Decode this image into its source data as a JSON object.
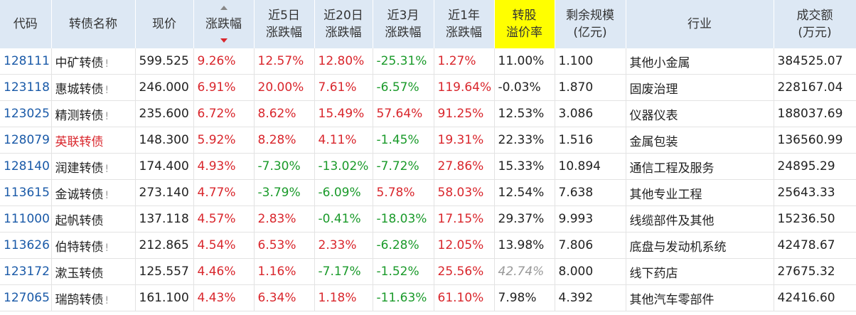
{
  "header": {
    "columns": [
      "代码",
      "转债名称",
      "现价",
      "涨跌幅",
      "近5日\n涨跌幅",
      "近20日\n涨跌幅",
      "近3月\n涨跌幅",
      "近1年\n涨跌幅",
      "转股\n溢价率",
      "剩余规模\n(亿元)",
      "行业",
      "成交额\n(万元)"
    ],
    "highlight_column": 8,
    "sorted_column": 3
  },
  "table": {
    "rows": [
      {
        "cells": [
          "128111",
          "中矿转债",
          "599.525",
          "9.26%",
          "12.57%",
          "12.80%",
          "-25.31%",
          "1.27%",
          "11.00%",
          "1.100",
          "其他小金属",
          "384525.07"
        ],
        "mark": "!"
      },
      {
        "cells": [
          "123118",
          "惠城转债",
          "246.000",
          "6.91%",
          "20.00%",
          "7.61%",
          "-6.57%",
          "119.64%",
          "-0.03%",
          "1.870",
          "固废治理",
          "228167.04"
        ],
        "mark": "!"
      },
      {
        "cells": [
          "123025",
          "精测转债",
          "235.600",
          "6.72%",
          "8.62%",
          "15.49%",
          "57.64%",
          "91.25%",
          "12.53%",
          "3.086",
          "仪器仪表",
          "188037.69"
        ],
        "mark": "!"
      },
      {
        "cells": [
          "128079",
          "英联转债",
          "148.300",
          "5.92%",
          "8.28%",
          "4.11%",
          "-1.45%",
          "19.31%",
          "22.33%",
          "1.516",
          "金属包装",
          "136560.99"
        ],
        "name_color": "#d9262c"
      },
      {
        "cells": [
          "128140",
          "润建转债",
          "174.400",
          "4.93%",
          "-7.30%",
          "-13.02%",
          "-7.72%",
          "27.86%",
          "15.33%",
          "10.894",
          "通信工程及服务",
          "24895.29"
        ],
        "mark": "!"
      },
      {
        "cells": [
          "113615",
          "金诚转债",
          "273.140",
          "4.77%",
          "-3.79%",
          "-6.09%",
          "5.78%",
          "58.03%",
          "12.54%",
          "7.638",
          "其他专业工程",
          "25643.33"
        ],
        "mark": "!"
      },
      {
        "cells": [
          "111000",
          "起帆转债",
          "137.118",
          "4.57%",
          "2.83%",
          "-0.41%",
          "-18.03%",
          "17.15%",
          "29.37%",
          "9.993",
          "线缆部件及其他",
          "15236.50"
        ]
      },
      {
        "cells": [
          "113626",
          "伯特转债",
          "212.865",
          "4.54%",
          "6.53%",
          "2.33%",
          "-6.28%",
          "12.05%",
          "13.98%",
          "7.806",
          "底盘与发动机系统",
          "42478.67"
        ],
        "mark": "!"
      },
      {
        "cells": [
          "123172",
          "漱玉转债",
          "125.557",
          "4.46%",
          "1.16%",
          "-7.17%",
          "-1.52%",
          "25.56%",
          "42.74%",
          "8.000",
          "线下药店",
          "27675.32"
        ],
        "muted_cell": 8
      },
      {
        "cells": [
          "127065",
          "瑞鹄转债",
          "161.100",
          "4.43%",
          "6.34%",
          "1.18%",
          "-11.63%",
          "61.10%",
          "7.98%",
          "4.392",
          "其他汽车零部件",
          "42416.60"
        ],
        "mark": "!"
      }
    ]
  }
}
